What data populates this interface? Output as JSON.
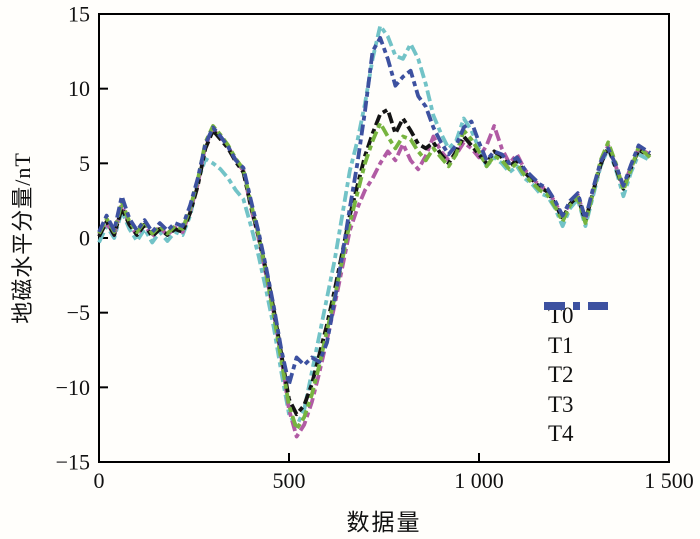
{
  "figure": {
    "background": "#fffefb",
    "frame_color": "#000000",
    "text_color": "#111111"
  },
  "chart_data": {
    "type": "line",
    "title": "",
    "xlabel": "数据量",
    "ylabel": "地磁水平分量/nT",
    "xlim": [
      0,
      1500
    ],
    "ylim": [
      -15,
      15
    ],
    "grid": false,
    "legend_position": "lower-right",
    "line_style": "dash-dot",
    "xticks": [
      {
        "value": 0,
        "label": "0"
      },
      {
        "value": 500,
        "label": "500"
      },
      {
        "value": 1000,
        "label": "1 000"
      },
      {
        "value": 1500,
        "label": "1 500"
      }
    ],
    "yticks": [
      {
        "value": 15,
        "label": "15"
      },
      {
        "value": 10,
        "label": "10"
      },
      {
        "value": 5,
        "label": "5"
      },
      {
        "value": 0,
        "label": "0"
      },
      {
        "value": -5,
        "label": "−5"
      },
      {
        "value": -10,
        "label": "−10"
      },
      {
        "value": -15,
        "label": "−15"
      }
    ],
    "x": [
      0,
      20,
      40,
      60,
      80,
      100,
      120,
      140,
      160,
      180,
      200,
      220,
      240,
      260,
      280,
      300,
      320,
      340,
      360,
      380,
      400,
      420,
      440,
      460,
      480,
      500,
      520,
      540,
      560,
      580,
      600,
      620,
      640,
      660,
      680,
      700,
      720,
      740,
      760,
      780,
      800,
      820,
      840,
      860,
      880,
      900,
      920,
      940,
      960,
      980,
      1000,
      1020,
      1040,
      1060,
      1080,
      1100,
      1120,
      1140,
      1160,
      1180,
      1200,
      1220,
      1240,
      1260,
      1280,
      1300,
      1320,
      1340,
      1360,
      1380,
      1400,
      1420,
      1450
    ],
    "series": [
      {
        "name": "T0",
        "color": "#72c3c7",
        "values": [
          -0.3,
          0.8,
          0.0,
          1.8,
          0.6,
          -0.2,
          0.6,
          -0.3,
          0.4,
          -0.2,
          0.4,
          0.2,
          1.5,
          3.8,
          5.3,
          5.0,
          4.6,
          4.0,
          3.2,
          2.6,
          0.8,
          -1.2,
          -3.5,
          -6.0,
          -9.0,
          -11.8,
          -12.6,
          -11.5,
          -9.0,
          -6.5,
          -4.0,
          -1.5,
          1.5,
          4.5,
          6.5,
          9.0,
          12.0,
          14.2,
          13.5,
          12.2,
          12.0,
          13.0,
          12.0,
          10.3,
          8.2,
          7.0,
          6.0,
          6.5,
          8.0,
          7.2,
          6.0,
          4.8,
          5.4,
          5.0,
          4.4,
          4.8,
          4.0,
          3.6,
          3.0,
          2.8,
          2.0,
          0.8,
          2.0,
          2.6,
          0.8,
          2.8,
          4.8,
          6.0,
          4.6,
          2.8,
          4.4,
          5.6,
          5.2
        ]
      },
      {
        "name": "T1",
        "color": "#b15ba4",
        "values": [
          0.2,
          1.0,
          0.2,
          2.2,
          0.9,
          0.2,
          0.9,
          0.1,
          0.7,
          0.2,
          0.7,
          0.4,
          1.8,
          3.6,
          6.2,
          7.3,
          6.7,
          6.1,
          5.2,
          4.5,
          2.0,
          0.0,
          -2.5,
          -5.0,
          -8.0,
          -11.5,
          -13.3,
          -12.5,
          -11.0,
          -9.0,
          -6.8,
          -4.5,
          -2.0,
          0.5,
          2.0,
          3.2,
          4.0,
          5.0,
          5.8,
          5.2,
          6.3,
          5.2,
          4.6,
          5.5,
          6.8,
          5.8,
          5.2,
          5.6,
          6.4,
          6.0,
          5.4,
          6.2,
          7.5,
          6.0,
          5.0,
          5.6,
          4.6,
          4.0,
          3.5,
          3.2,
          2.4,
          1.4,
          2.4,
          2.9,
          1.2,
          3.2,
          5.0,
          6.2,
          4.8,
          3.4,
          4.8,
          6.0,
          5.6
        ]
      },
      {
        "name": "T2",
        "color": "#141414",
        "values": [
          0.1,
          1.1,
          0.2,
          2.0,
          0.9,
          0.2,
          0.9,
          0.1,
          0.6,
          0.2,
          0.6,
          0.4,
          1.7,
          3.5,
          6.0,
          7.2,
          6.6,
          6.0,
          5.1,
          4.4,
          2.1,
          0.1,
          -2.2,
          -4.8,
          -7.8,
          -10.8,
          -11.8,
          -11.2,
          -9.8,
          -7.8,
          -5.8,
          -3.5,
          -1.0,
          1.5,
          3.5,
          5.5,
          7.0,
          8.3,
          8.6,
          7.0,
          8.0,
          7.2,
          6.3,
          6.0,
          6.4,
          5.6,
          5.0,
          5.8,
          6.8,
          6.2,
          5.6,
          5.0,
          5.8,
          5.4,
          4.8,
          5.2,
          4.4,
          3.9,
          3.4,
          3.1,
          2.3,
          1.3,
          2.3,
          2.8,
          1.1,
          3.1,
          4.9,
          6.1,
          4.7,
          3.3,
          4.7,
          5.9,
          5.5
        ]
      },
      {
        "name": "T3",
        "color": "#77b43f",
        "values": [
          0.3,
          1.3,
          0.4,
          2.4,
          1.1,
          0.4,
          1.1,
          0.3,
          0.8,
          0.3,
          0.8,
          0.6,
          2.0,
          3.9,
          6.4,
          7.5,
          6.9,
          6.2,
          5.3,
          4.6,
          2.3,
          0.2,
          -2.4,
          -5.2,
          -8.2,
          -11.2,
          -12.8,
          -12.0,
          -10.5,
          -8.5,
          -6.2,
          -4.0,
          -1.5,
          1.0,
          3.0,
          5.0,
          6.5,
          7.7,
          6.8,
          6.0,
          6.8,
          6.6,
          5.8,
          5.2,
          6.0,
          5.4,
          4.8,
          5.6,
          7.2,
          6.6,
          5.8,
          4.8,
          5.5,
          5.2,
          4.6,
          5.0,
          4.2,
          3.7,
          3.2,
          2.9,
          2.1,
          1.1,
          2.2,
          2.7,
          1.0,
          3.0,
          5.2,
          6.4,
          5.0,
          3.2,
          4.6,
          6.1,
          5.4
        ]
      },
      {
        "name": "T4",
        "color": "#3d51a0",
        "values": [
          0.4,
          1.5,
          0.5,
          2.8,
          1.3,
          0.5,
          1.2,
          0.4,
          1.0,
          0.5,
          1.0,
          0.8,
          2.2,
          4.0,
          6.3,
          7.4,
          6.8,
          6.1,
          5.2,
          4.7,
          2.5,
          0.4,
          -2.0,
          -4.6,
          -7.5,
          -9.8,
          -8.0,
          -8.5,
          -8.0,
          -8.3,
          -7.0,
          -4.2,
          -1.2,
          2.0,
          5.0,
          8.5,
          12.5,
          13.4,
          12.0,
          10.2,
          10.8,
          11.2,
          9.5,
          8.8,
          7.4,
          6.4,
          5.6,
          6.2,
          7.4,
          7.8,
          6.4,
          5.2,
          5.8,
          5.6,
          5.0,
          5.4,
          4.6,
          4.1,
          3.6,
          3.3,
          2.5,
          1.5,
          2.5,
          3.0,
          1.3,
          3.3,
          5.1,
          6.0,
          4.9,
          3.5,
          4.9,
          6.2,
          5.7
        ]
      }
    ]
  }
}
